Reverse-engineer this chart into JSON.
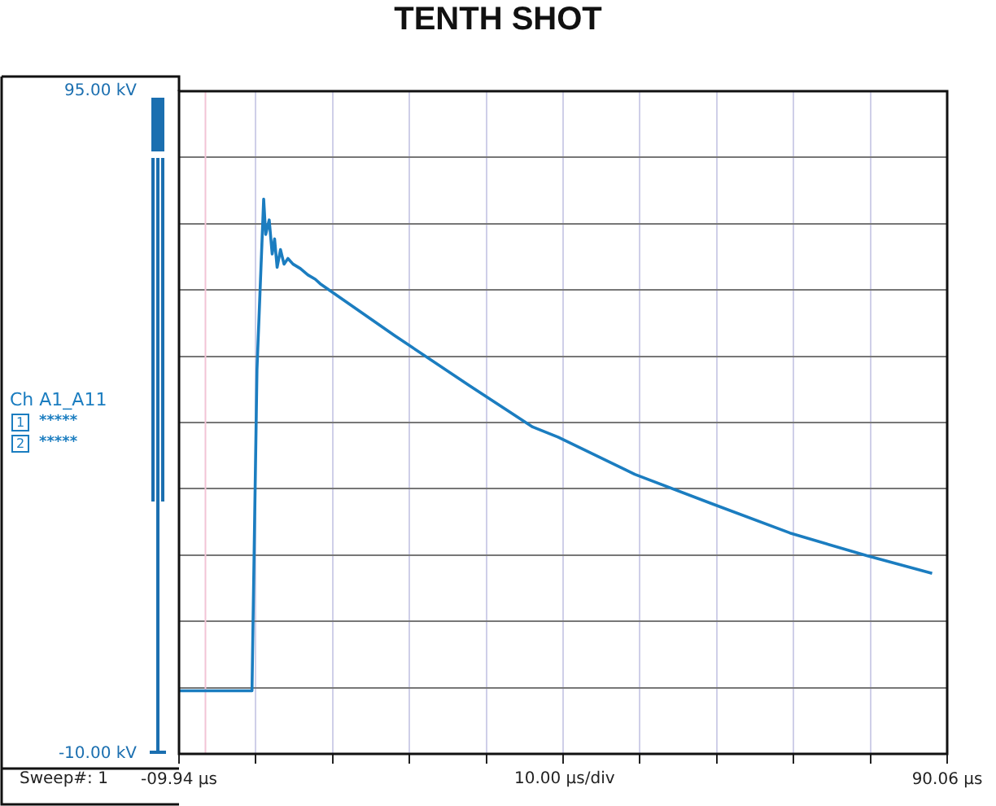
{
  "chart_data": {
    "type": "line",
    "title": "TENTH SHOT",
    "xlabel": "10.00 µs/div",
    "annotations": [
      "1",
      "*****",
      "2",
      "*****",
      "Sweep#: 1"
    ],
    "series": [
      {
        "name": "Ch A1_A11",
        "color": "#1b7dc0",
        "x": [
          -9.94,
          -0.44,
          0.21,
          1.08,
          1.34,
          1.8,
          2.19,
          2.5,
          2.83,
          3.27,
          3.73,
          4.24,
          4.9,
          5.86,
          6.83,
          7.8,
          8.43,
          18.1,
          27.8,
          36.1,
          39.4,
          49.4,
          59.3,
          69.6,
          79.6,
          88.1
        ],
        "values": [
          0,
          0,
          51,
          77.9,
          72.3,
          74.6,
          69.2,
          71.6,
          67.1,
          69.9,
          67.6,
          68.5,
          67.6,
          66.9,
          65.9,
          65.2,
          64.5,
          56.3,
          48.4,
          41.8,
          40.2,
          34.3,
          29.7,
          25.0,
          21.4,
          18.6
        ]
      }
    ],
    "xlim": [
      -9.94,
      90.06
    ],
    "xticks": [
      {
        "value": -9.94,
        "label": "-09.94 µs"
      },
      {
        "value": 0.06,
        "label": null
      },
      {
        "value": 10.06,
        "label": null
      },
      {
        "value": 20.06,
        "label": null
      },
      {
        "value": 30.06,
        "label": null
      },
      {
        "value": 40.06,
        "label": null
      },
      {
        "value": 50.06,
        "label": null
      },
      {
        "value": 60.06,
        "label": null
      },
      {
        "value": 70.06,
        "label": null
      },
      {
        "value": 80.06,
        "label": null
      },
      {
        "value": 90.06,
        "label": "90.06 µs"
      }
    ],
    "ylim": [
      -10,
      95
    ],
    "yticks": [
      {
        "value": -10,
        "label": "-10.00 kV"
      },
      {
        "value": 0.5,
        "label": null
      },
      {
        "value": 11,
        "label": null
      },
      {
        "value": 21.5,
        "label": null
      },
      {
        "value": 32,
        "label": null
      },
      {
        "value": 42.5,
        "label": null
      },
      {
        "value": 53,
        "label": null
      },
      {
        "value": 63.5,
        "label": null
      },
      {
        "value": 74,
        "label": null
      },
      {
        "value": 84.5,
        "label": null
      },
      {
        "value": 95,
        "label": "95.00 kV"
      }
    ],
    "ref_lines": [
      {
        "axis": "x",
        "value": -6.5,
        "color": "#f2c4d6"
      }
    ],
    "grid": true,
    "legend": "left",
    "marker": "none",
    "line_style": "solid"
  }
}
